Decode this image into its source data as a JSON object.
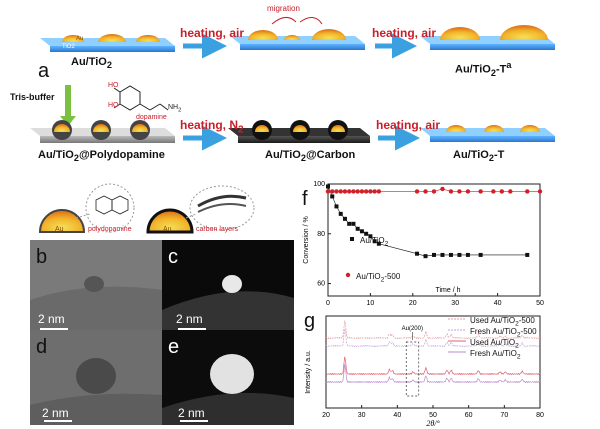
{
  "scheme": {
    "panel_label": "a",
    "au_label": "Au",
    "tio2_label": "TiO2",
    "stage1_label": "Au/TiO",
    "stage1_sub": "2",
    "stage2_label": "Au/TiO",
    "stage2_sub": "2",
    "stage2_suffix": "-T",
    "stage2_sup": "a",
    "stage3_label": "Au/TiO",
    "stage3_sub": "2",
    "stage3_suffix": "@Polydopamine",
    "stage4_label": "Au/TiO",
    "stage4_sub": "2",
    "stage4_suffix": "@Carbon",
    "stage5_label": "Au/TiO",
    "stage5_sub": "2",
    "stage5_suffix": "-T",
    "arrow1": "heating, air",
    "arrow2": "heating, air",
    "arrow3": "heating, N",
    "arrow3_sub": "2",
    "arrow4": "heating, air",
    "migration": "migration",
    "tris": "Tris-buffer",
    "dopamine": "dopamine",
    "ho1": "HO",
    "ho2": "HO",
    "nh2": "NH",
    "nh2_sub": "2",
    "polydopamine": "polydopamine",
    "carbon_layers": "carbon layers",
    "au_small1": "Au",
    "au_small2": "Au"
  },
  "tem": {
    "b": {
      "letter": "b",
      "scale": "2 nm"
    },
    "c": {
      "letter": "c",
      "scale": "2 nm"
    },
    "d": {
      "letter": "d",
      "scale": "2 nm"
    },
    "e": {
      "letter": "e",
      "scale": "2 nm"
    }
  },
  "chart_data": [
    {
      "type": "scatter",
      "panel": "f",
      "xlabel": "Time / h",
      "ylabel": "Conversion / %",
      "xlim": [
        0,
        50
      ],
      "ylim": [
        55,
        100
      ],
      "xticks": [
        0,
        10,
        20,
        30,
        40,
        50
      ],
      "yticks": [
        60,
        80,
        100
      ],
      "series": [
        {
          "name": "Au/TiO2",
          "color": "#111111",
          "marker": "square",
          "x": [
            0,
            1,
            2,
            3,
            4,
            5,
            6,
            7,
            8,
            9,
            10,
            11,
            12,
            21,
            23,
            25,
            27,
            29,
            31,
            33,
            36,
            47
          ],
          "y": [
            99,
            95,
            91,
            88,
            86,
            84,
            84,
            82,
            81,
            80,
            79,
            77,
            76,
            72,
            71,
            71.5,
            71.5,
            71.5,
            71.5,
            71.5,
            71.5,
            71.5
          ]
        },
        {
          "name": "Au/TiO2-500",
          "color": "#d0202a",
          "marker": "circle",
          "x": [
            0,
            1,
            2,
            3,
            4,
            5,
            6,
            7,
            8,
            9,
            10,
            11,
            12,
            21,
            23,
            25,
            27,
            29,
            31,
            33,
            36,
            39,
            41,
            43,
            47,
            50
          ],
          "y": [
            97,
            97,
            97,
            97,
            97,
            97,
            97,
            97,
            97,
            97,
            97,
            97,
            97,
            97,
            97,
            97,
            98,
            97,
            97,
            97,
            97,
            97,
            97,
            97,
            97,
            97
          ]
        }
      ]
    },
    {
      "type": "line",
      "panel": "g",
      "xlabel": "2θ/°",
      "ylabel": "Intensity / a.u.",
      "xlim": [
        20,
        80
      ],
      "xticks": [
        20,
        30,
        40,
        50,
        60,
        70,
        80
      ],
      "annotation": "Au(200)",
      "series": [
        {
          "name": "Used Au/TiO2-500",
          "color": "#e39aa0",
          "style": "dashed"
        },
        {
          "name": "Fresh Au/TiO2-500",
          "color": "#c5a3d9",
          "style": "dashed"
        },
        {
          "name": "Used Au/TiO2",
          "color": "#e06070",
          "style": "solid"
        },
        {
          "name": "Fresh Au/TiO2",
          "color": "#b98ccf",
          "style": "solid"
        }
      ]
    }
  ],
  "chart_text": {
    "f_letter": "f",
    "g_letter": "g",
    "legend_f1": "Au/TiO",
    "legend_f1_sub": "2",
    "legend_f2": "Au/TiO",
    "legend_f2_sub": "2",
    "legend_f2_suffix": "-500",
    "legend_g1": "Used Au/TiO",
    "legend_g1_sub": "2",
    "legend_g1_suffix": "-500",
    "legend_g2": "Fresh Au/TiO",
    "legend_g2_sub": "2",
    "legend_g2_suffix": "-500",
    "legend_g3": "Used Au/TiO",
    "legend_g3_sub": "2",
    "legend_g4": "Fresh Au/TiO",
    "legend_g4_sub": "2"
  }
}
